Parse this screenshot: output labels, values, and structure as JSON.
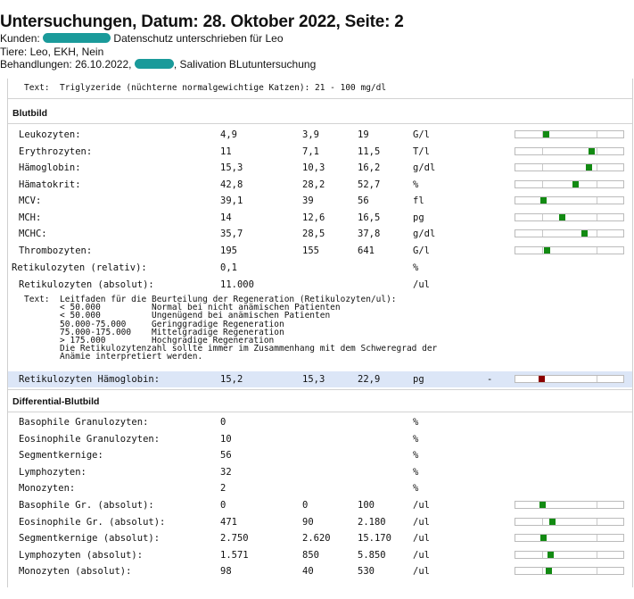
{
  "header": {
    "title": "Untersuchungen, Datum: 28. Oktober 2022, Seite: 2",
    "kunden_label": "Kunden:",
    "kunden_text": "Datenschutz unterschrieben für Leo",
    "tiere": "Tiere: Leo, EKH, Nein",
    "behandlungen_label": "Behandlungen: 26.10.2022,",
    "behandlungen_text": ", Salivation BLutuntersuchung"
  },
  "top_text": "Text:  Triglyzeride (nüchterne normalgewichtige Katzen): 21 - 100 mg/dl",
  "sections": {
    "blutbild": "Blutbild",
    "differential": "Differential-Blutbild"
  },
  "blutbild_rows": [
    {
      "name": "Leukozyten:",
      "value": "4,9",
      "min": "3,9",
      "max": "19",
      "unit": "G/l",
      "level": 0.07
    },
    {
      "name": "Erythrozyten:",
      "value": "11",
      "min": "7,1",
      "max": "11,5",
      "unit": "T/l",
      "level": 0.9
    },
    {
      "name": "Hämoglobin:",
      "value": "15,3",
      "min": "10,3",
      "max": "16,2",
      "unit": "g/dl",
      "level": 0.85
    },
    {
      "name": "Hämatokrit:",
      "value": "42,8",
      "min": "28,2",
      "max": "52,7",
      "unit": "%",
      "level": 0.6
    },
    {
      "name": "MCV:",
      "value": "39,1",
      "min": "39",
      "max": "56",
      "unit": "fl",
      "level": 0.01
    },
    {
      "name": "MCH:",
      "value": "14",
      "min": "12,6",
      "max": "16,5",
      "unit": "pg",
      "level": 0.36
    },
    {
      "name": "MCHC:",
      "value": "35,7",
      "min": "28,5",
      "max": "37,8",
      "unit": "g/dl",
      "level": 0.77
    },
    {
      "name": "Thrombozyten:",
      "value": "195",
      "min": "155",
      "max": "641",
      "unit": "G/l",
      "level": 0.08
    }
  ],
  "reti_rows": [
    {
      "name": "Retikulozyten (relativ):",
      "value": "0,1",
      "unit": "%"
    },
    {
      "name": "Retikulozyten (absolut):",
      "value": "11.000",
      "unit": "/ul"
    }
  ],
  "reti_text": [
    "Text:  Leitfaden für die Beurteilung der Regeneration (Retikulozyten/ul):",
    "       < 50.000          Normal bei nicht anämischen Patienten",
    "       < 50.000          Ungenügend bei anämischen Patienten",
    "       50.000-75.000     Geringgradige Regeneration",
    "       75.000-175.000    Mittelgradige Regeneration",
    "       > 175.000         Hochgradige Regeneration",
    "       Die Retikulozytenzahl sollte immer im Zusammenhang mit dem Schweregrad der",
    "       Anämie interpretiert werden."
  ],
  "reti_hb": {
    "name": "Retikulozyten Hämoglobin:",
    "value": "15,2",
    "min": "15,3",
    "max": "22,9",
    "unit": "pg",
    "flag": "-",
    "level": -0.01
  },
  "diff_rows": [
    {
      "name": "Basophile Granulozyten:",
      "value": "0",
      "unit": "%"
    },
    {
      "name": "Eosinophile Granulozyten:",
      "value": "10",
      "unit": "%"
    },
    {
      "name": "Segmentkernige:",
      "value": "56",
      "unit": "%"
    },
    {
      "name": "Lymphozyten:",
      "value": "32",
      "unit": "%"
    },
    {
      "name": "Monozyten:",
      "value": "2",
      "unit": "%"
    }
  ],
  "diff_abs_rows": [
    {
      "name": "Basophile Gr. (absolut):",
      "value": "0",
      "min": "0",
      "max": "100",
      "unit": "/ul",
      "level": 0.0
    },
    {
      "name": "Eosinophile Gr. (absolut):",
      "value": "471",
      "min": "90",
      "max": "2.180",
      "unit": "/ul",
      "level": 0.18
    },
    {
      "name": "Segmentkernige (absolut):",
      "value": "2.750",
      "min": "2.620",
      "max": "15.170",
      "unit": "/ul",
      "level": 0.01
    },
    {
      "name": "Lymphozyten (absolut):",
      "value": "1.571",
      "min": "850",
      "max": "5.850",
      "unit": "/ul",
      "level": 0.14
    },
    {
      "name": "Monozyten (absolut):",
      "value": "98",
      "min": "40",
      "max": "530",
      "unit": "/ul",
      "level": 0.12
    }
  ],
  "colors": {
    "normal_marker": "#128a12",
    "abnormal_marker": "#8b0000",
    "highlight": "#dce6f7",
    "redaction": "#1a9a9a"
  }
}
